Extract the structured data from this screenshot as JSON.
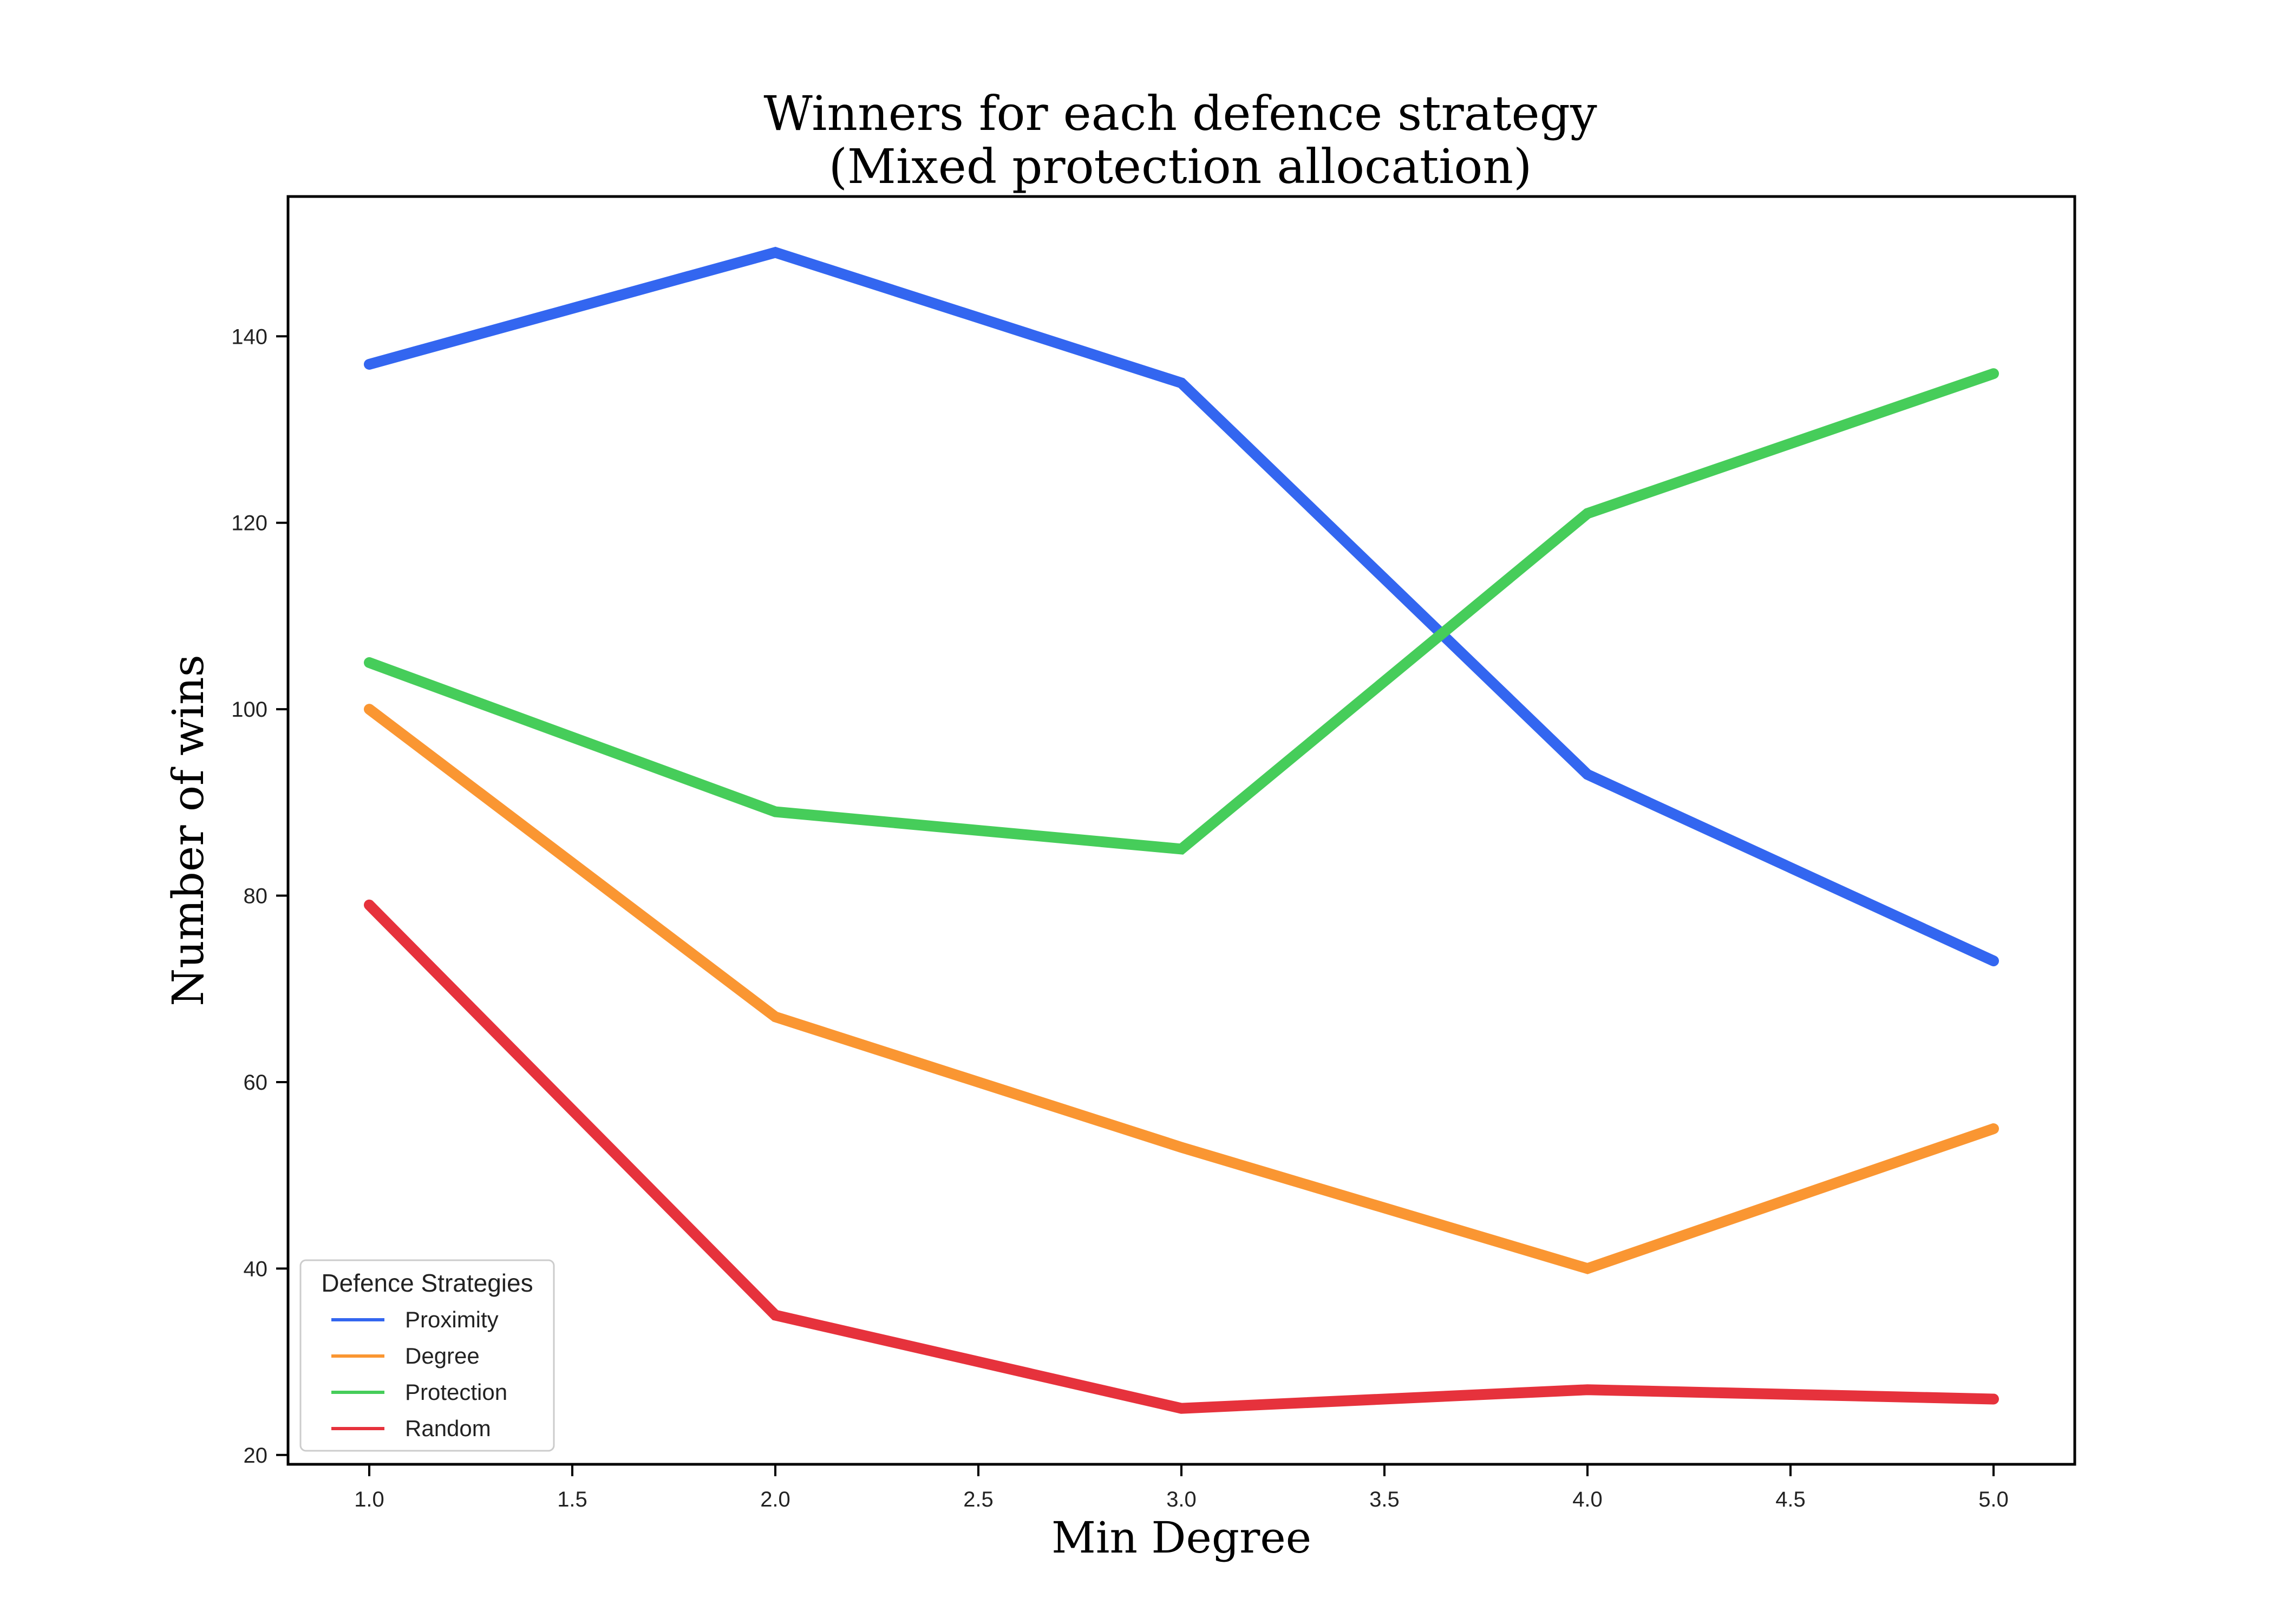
{
  "chart_data": {
    "type": "line",
    "title": "Winners for each defence strategy",
    "subtitle": "(Mixed protection allocation)",
    "xlabel": "Min Degree",
    "ylabel": "Number of wins",
    "x": [
      1.0,
      2.0,
      3.0,
      4.0,
      5.0
    ],
    "xlim": [
      0.8,
      5.2
    ],
    "ylim": [
      19,
      155
    ],
    "xticks": [
      1.0,
      1.5,
      2.0,
      2.5,
      3.0,
      3.5,
      4.0,
      4.5,
      5.0
    ],
    "xtick_labels": [
      "1.0",
      "1.5",
      "2.0",
      "2.5",
      "3.0",
      "3.5",
      "4.0",
      "4.5",
      "5.0"
    ],
    "yticks": [
      20,
      40,
      60,
      80,
      100,
      120,
      140
    ],
    "ytick_labels": [
      "20",
      "40",
      "60",
      "80",
      "100",
      "120",
      "140"
    ],
    "grid": false,
    "legend": {
      "title": "Defence Strategies",
      "position": "lower-left"
    },
    "series": [
      {
        "name": "Proximity",
        "color": "#3366f0",
        "values": [
          137,
          149,
          135,
          93,
          73
        ]
      },
      {
        "name": "Degree",
        "color": "#fa9632",
        "values": [
          100,
          67,
          53,
          40,
          55
        ]
      },
      {
        "name": "Protection",
        "color": "#46cd5a",
        "values": [
          105,
          89,
          85,
          121,
          136
        ]
      },
      {
        "name": "Random",
        "color": "#e6323c",
        "values": [
          79,
          35,
          25,
          27,
          26
        ]
      }
    ]
  }
}
